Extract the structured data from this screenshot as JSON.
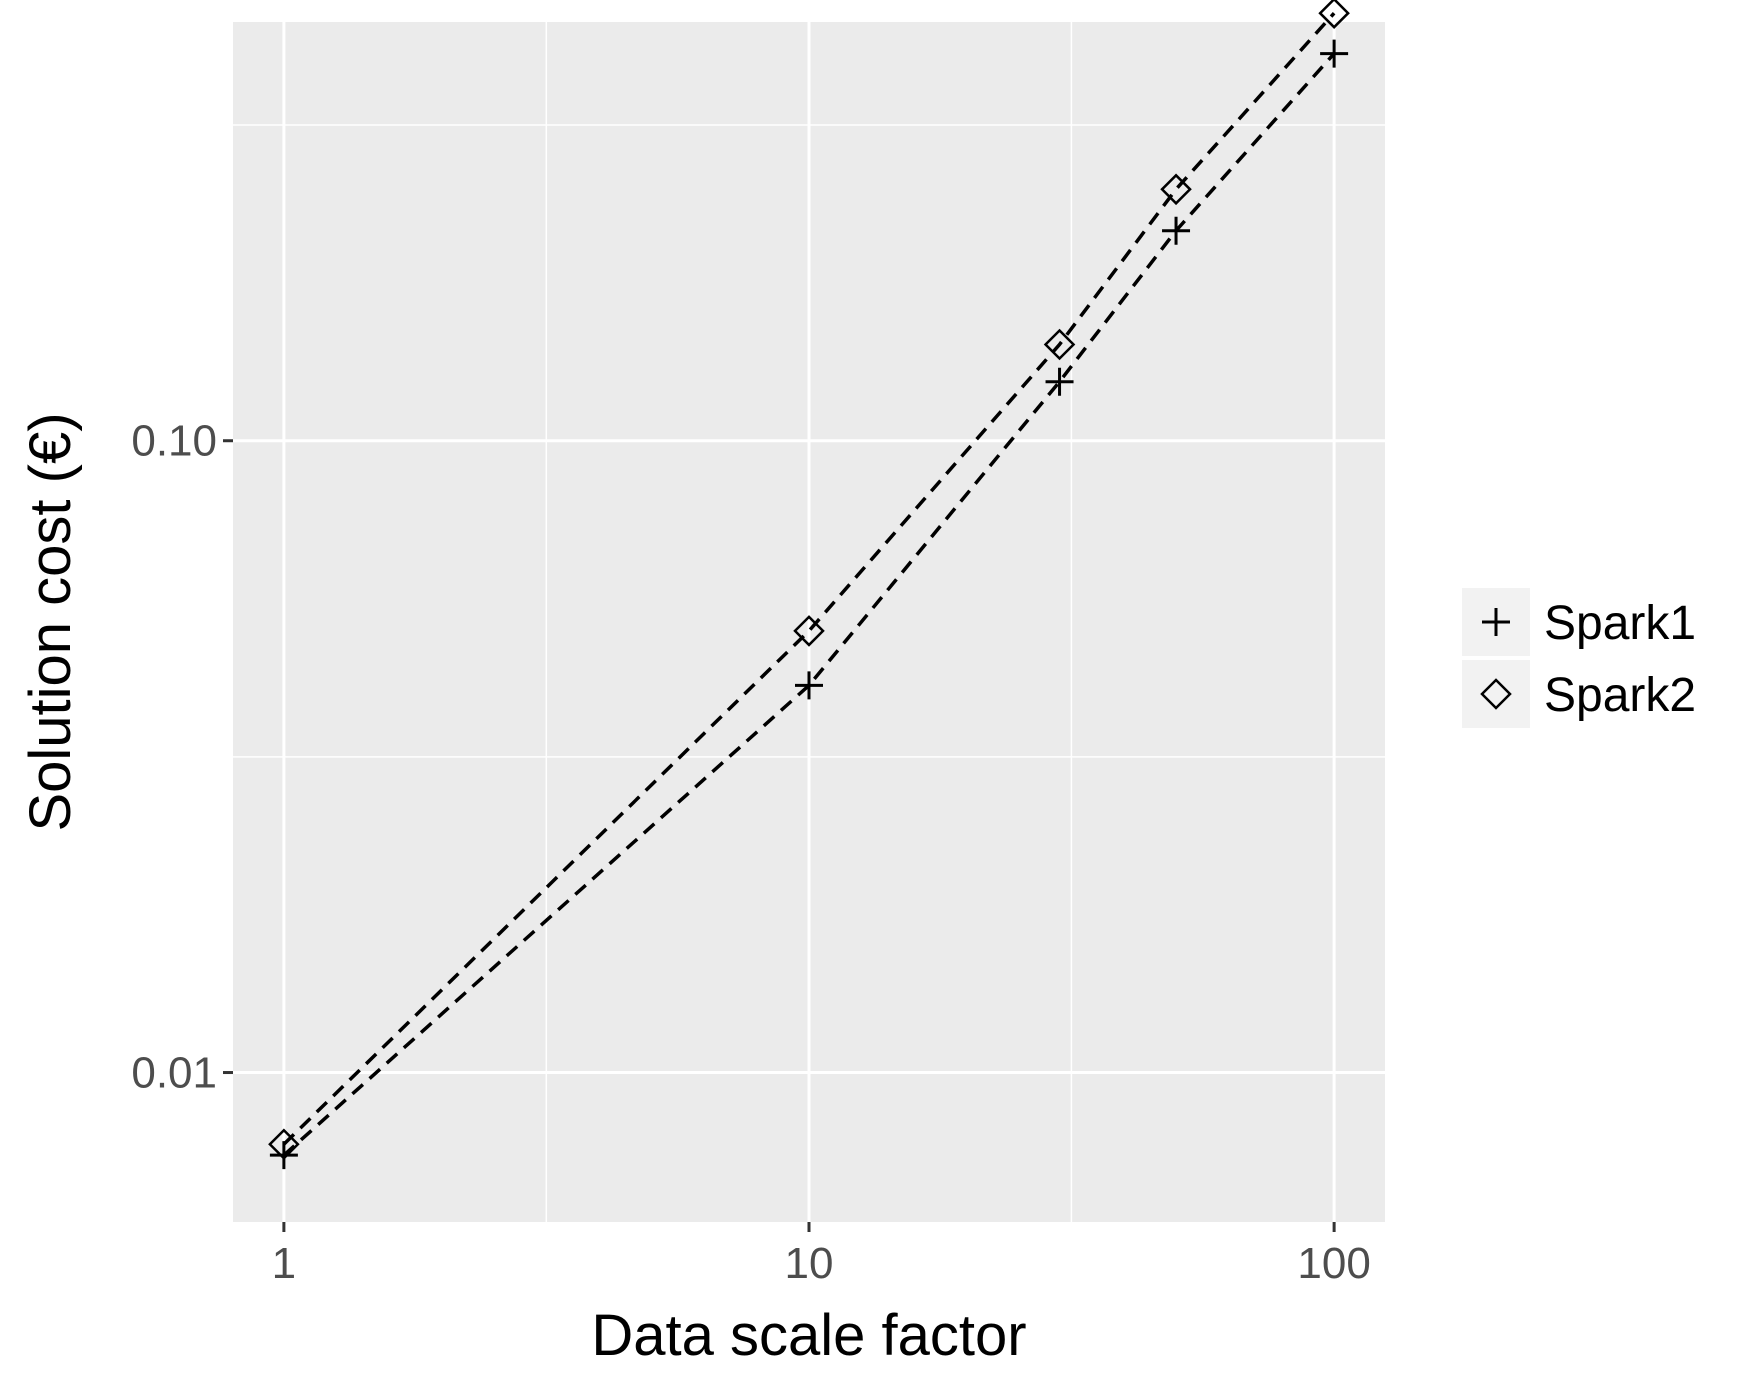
{
  "chart_data": {
    "type": "line",
    "title": "",
    "xlabel": "Data scale factor",
    "ylabel": "Solution cost (€)",
    "x_scale": "log",
    "y_scale": "log",
    "xlim": [
      0.8,
      125
    ],
    "ylim": [
      0.0058,
      0.46
    ],
    "x_ticks": [
      {
        "value": 1,
        "label": "1"
      },
      {
        "value": 10,
        "label": "10"
      },
      {
        "value": 100,
        "label": "100"
      }
    ],
    "y_ticks": [
      {
        "value": 0.01,
        "label": "0.01"
      },
      {
        "value": 0.1,
        "label": "0.10"
      }
    ],
    "x_minor_gridlines": [
      3.16,
      31.6
    ],
    "y_minor_gridlines": [
      0.0316,
      0.316
    ],
    "grid": true,
    "legend_position": "right",
    "series": [
      {
        "name": "Spark1",
        "marker": "plus",
        "line_style": "dashed",
        "x": [
          1,
          10,
          30,
          50,
          100
        ],
        "y": [
          0.0074,
          0.041,
          0.124,
          0.215,
          0.41
        ]
      },
      {
        "name": "Spark2",
        "marker": "diamond",
        "line_style": "dashed",
        "x": [
          1,
          10,
          30,
          50,
          100
        ],
        "y": [
          0.0077,
          0.05,
          0.142,
          0.25,
          0.475
        ]
      }
    ]
  }
}
